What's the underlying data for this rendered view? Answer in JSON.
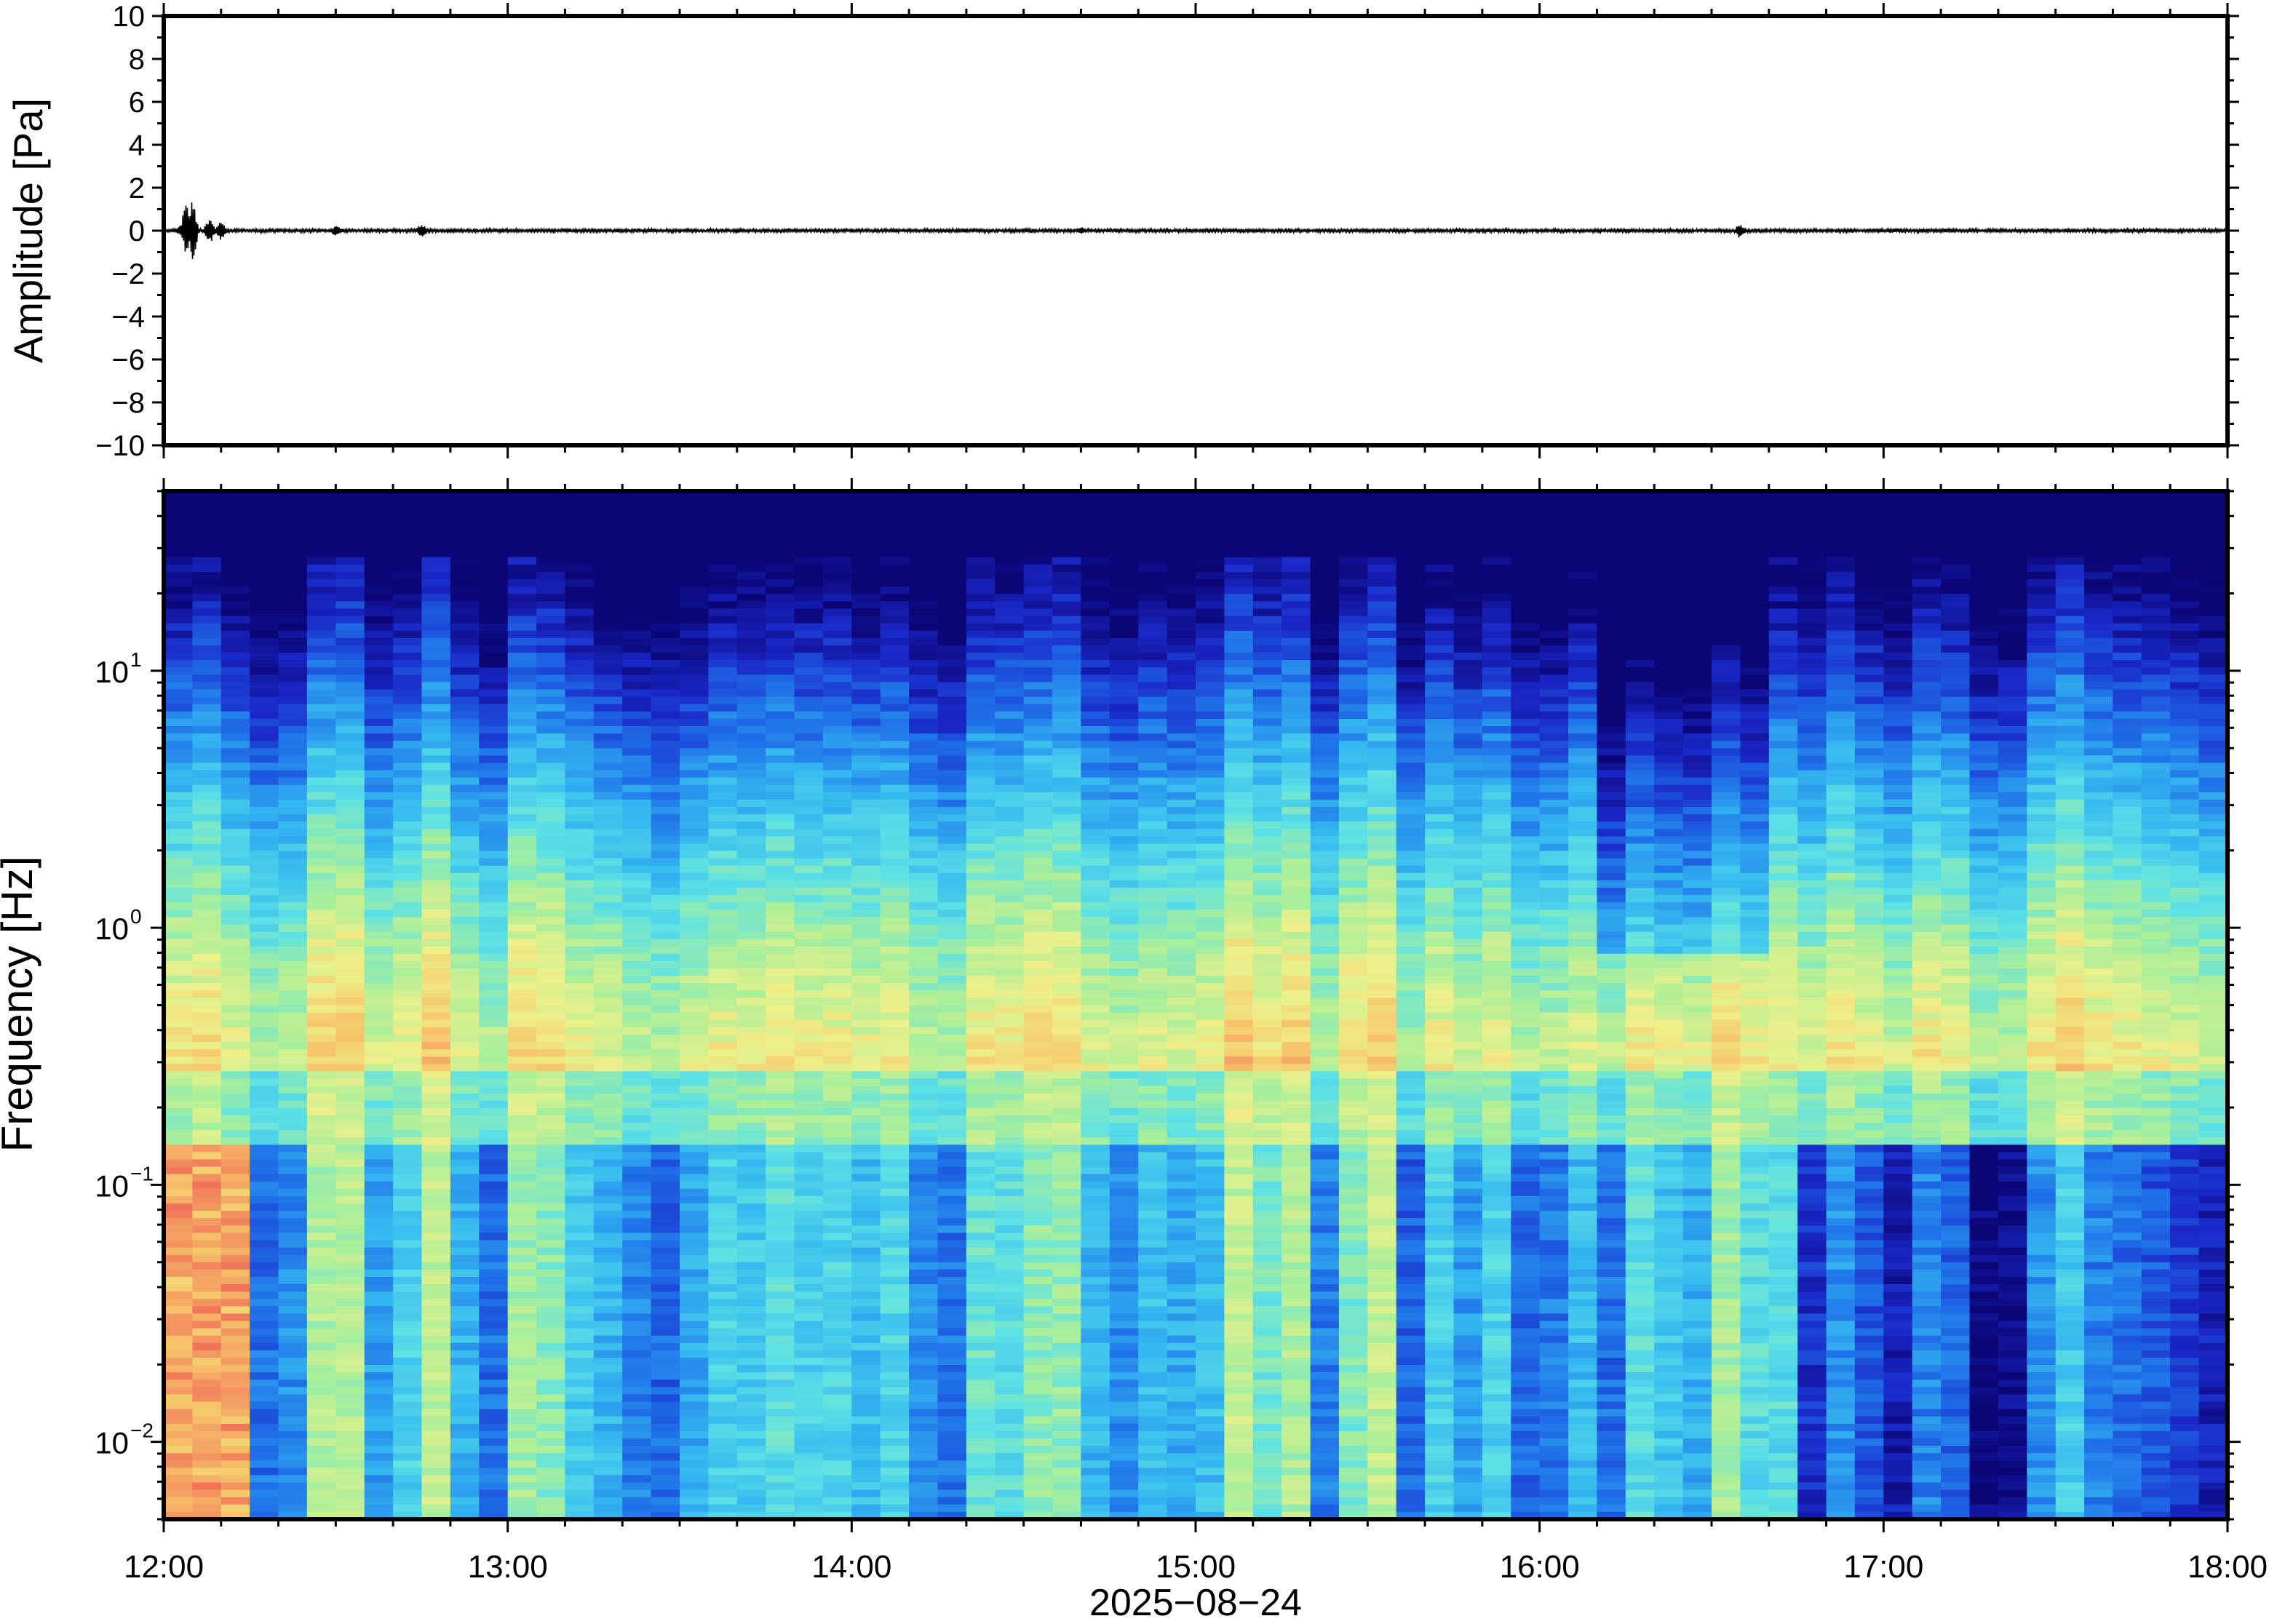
{
  "chart_data": [
    {
      "type": "line",
      "ylabel": "Amplitude [Pa]",
      "ylim": [
        -10,
        10
      ],
      "yticks": [
        10,
        8,
        6,
        4,
        2,
        0,
        -2,
        -4,
        -6,
        -8,
        -10
      ],
      "ytick_labels": [
        "10",
        "8",
        "6",
        "4",
        "2",
        "0",
        "−2",
        "−4",
        "−6",
        "−8",
        "−10"
      ],
      "xlim": [
        "12:00",
        "18:00"
      ],
      "series": [
        {
          "values_description_free": true,
          "x": [
            "12:00",
            "12:03",
            "12:04",
            "12:05",
            "12:08",
            "12:10",
            "12:30",
            "12:45",
            "14:40",
            "16:35",
            "18:00"
          ],
          "y": [
            0,
            0.3,
            1.6,
            -1.6,
            0.7,
            -0.5,
            0.3,
            0.4,
            0.2,
            0.4,
            0
          ]
        }
      ],
      "grid": false
    },
    {
      "type": "heatmap",
      "ylabel": "Frequency [Hz]",
      "yscale": "log",
      "ylim": [
        0.005,
        50
      ],
      "yticks": [
        10,
        1,
        0.1,
        0.01
      ],
      "ytick_labels": [
        {
          "base": "10",
          "exp": "1"
        },
        {
          "base": "10",
          "exp": "0"
        },
        {
          "base": "10",
          "exp": "−1"
        },
        {
          "base": "10",
          "exp": "−2"
        }
      ],
      "xlim": [
        "12:00",
        "18:00"
      ],
      "xticks": [
        "12:00",
        "13:00",
        "14:00",
        "15:00",
        "16:00",
        "17:00",
        "18:00"
      ],
      "xlabel": "2025−08−24",
      "colormap": [
        "#0b0575",
        "#1a28c8",
        "#1f6fe8",
        "#34b6f0",
        "#5ce1e6",
        "#a9ef9a",
        "#eef08a",
        "#f7c46a",
        "#f0735a"
      ],
      "grid": false
    }
  ]
}
